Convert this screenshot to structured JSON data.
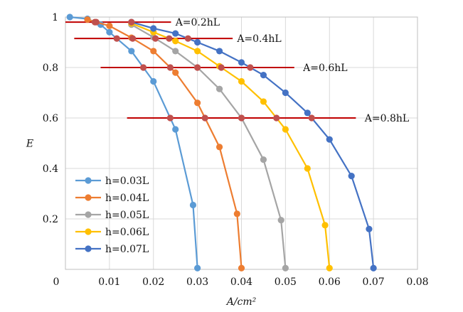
{
  "chart_data": {
    "type": "line",
    "xlabel": "A/cm²",
    "ylabel": "E",
    "xlim": [
      0,
      0.08
    ],
    "ylim": [
      0,
      1
    ],
    "x_ticks": [
      "0",
      "0.01",
      "0.02",
      "0.03",
      "0.04",
      "0.05",
      "0.06",
      "0.07",
      "0.08"
    ],
    "y_ticks": [
      "0.2",
      "0.4",
      "0.6",
      "0.8",
      "1"
    ],
    "grid": "vertical and horizontal major lines",
    "legend_position": "bottom-left",
    "series": [
      {
        "name": "h=0.03L",
        "color": "#5b9bd5",
        "points": [
          [
            0.001,
            1.0
          ],
          [
            0.005,
            0.993
          ],
          [
            0.008,
            0.97
          ],
          [
            0.01,
            0.94
          ],
          [
            0.015,
            0.865
          ],
          [
            0.02,
            0.745
          ],
          [
            0.025,
            0.555
          ],
          [
            0.029,
            0.255
          ],
          [
            0.03,
            0.005
          ]
        ]
      },
      {
        "name": "h=0.04L",
        "color": "#ed7d31",
        "points": [
          [
            0.005,
            0.99
          ],
          [
            0.01,
            0.965
          ],
          [
            0.015,
            0.918
          ],
          [
            0.02,
            0.865
          ],
          [
            0.025,
            0.78
          ],
          [
            0.03,
            0.66
          ],
          [
            0.035,
            0.485
          ],
          [
            0.039,
            0.22
          ],
          [
            0.04,
            0.005
          ]
        ]
      },
      {
        "name": "h=0.05L",
        "color": "#a5a5a5",
        "points": [
          [
            0.015,
            0.97
          ],
          [
            0.02,
            0.92
          ],
          [
            0.025,
            0.865
          ],
          [
            0.03,
            0.8
          ],
          [
            0.035,
            0.715
          ],
          [
            0.04,
            0.6
          ],
          [
            0.045,
            0.435
          ],
          [
            0.049,
            0.195
          ],
          [
            0.05,
            0.005
          ]
        ]
      },
      {
        "name": "h=0.06L",
        "color": "#ffc000",
        "points": [
          [
            0.015,
            0.975
          ],
          [
            0.02,
            0.94
          ],
          [
            0.025,
            0.905
          ],
          [
            0.03,
            0.865
          ],
          [
            0.035,
            0.805
          ],
          [
            0.04,
            0.745
          ],
          [
            0.045,
            0.665
          ],
          [
            0.05,
            0.555
          ],
          [
            0.055,
            0.4
          ],
          [
            0.059,
            0.175
          ],
          [
            0.06,
            0.005
          ]
        ]
      },
      {
        "name": "h=0.07L",
        "color": "#4472c4",
        "points": [
          [
            0.015,
            0.98
          ],
          [
            0.02,
            0.955
          ],
          [
            0.025,
            0.935
          ],
          [
            0.03,
            0.9
          ],
          [
            0.035,
            0.865
          ],
          [
            0.04,
            0.82
          ],
          [
            0.045,
            0.77
          ],
          [
            0.05,
            0.7
          ],
          [
            0.055,
            0.62
          ],
          [
            0.06,
            0.515
          ],
          [
            0.065,
            0.37
          ],
          [
            0.069,
            0.16
          ],
          [
            0.07,
            0.005
          ]
        ]
      }
    ],
    "annotations": [
      {
        "label": "A=0.2hL",
        "y": 0.98,
        "x_start": 0.0,
        "x_end": 0.024,
        "label_x": 0.025
      },
      {
        "label": "A=0.4hL",
        "y": 0.915,
        "x_start": 0.002,
        "x_end": 0.038,
        "label_x": 0.039
      },
      {
        "label": "A=0.6hL",
        "y": 0.8,
        "x_start": 0.008,
        "x_end": 0.052,
        "label_x": 0.054
      },
      {
        "label": "A=0.8hL",
        "y": 0.6,
        "x_start": 0.014,
        "x_end": 0.066,
        "label_x": 0.068
      }
    ],
    "annotation_color": "#c00000",
    "intersection_color": "#c0504d"
  }
}
